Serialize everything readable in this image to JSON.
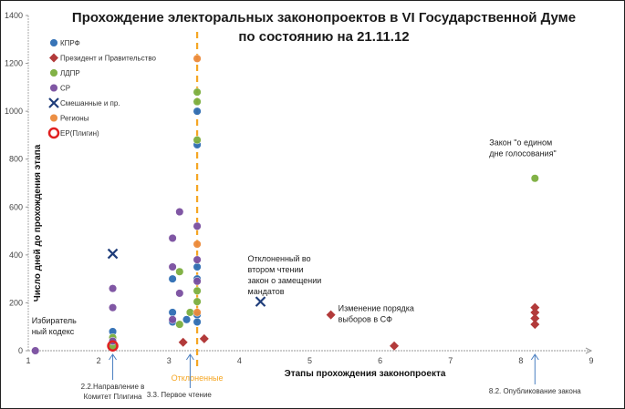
{
  "chart_data": {
    "type": "scatter",
    "title": "Прохождение электоральных законопроектов в VI Государственной Думе",
    "subtitle": "по состоянию на 21.11.12",
    "xlabel": "Этапы прохождения законопроекта",
    "ylabel": "Число дней до прохождения этапа",
    "xlim": [
      1,
      9
    ],
    "ylim": [
      0,
      1400
    ],
    "x_ticks": [
      "1",
      "2",
      "3",
      "4",
      "5",
      "6",
      "7",
      "8",
      "9"
    ],
    "y_ticks": [
      "0",
      "200",
      "400",
      "600",
      "800",
      "1000",
      "1200",
      "1400"
    ],
    "legend_position": "top-left",
    "series": [
      {
        "name": "КПРФ",
        "color": "#2e6db4",
        "marker": "circle",
        "points": [
          [
            2.2,
            80
          ],
          [
            3.05,
            300
          ],
          [
            3.05,
            160
          ],
          [
            3.05,
            120
          ],
          [
            3.25,
            130
          ],
          [
            3.4,
            1000
          ],
          [
            3.4,
            860
          ],
          [
            3.4,
            350
          ],
          [
            3.4,
            300
          ],
          [
            3.4,
            150
          ],
          [
            3.4,
            120
          ]
        ]
      },
      {
        "name": "Президент и Правительство",
        "color": "#b23a3a",
        "marker": "diamond",
        "points": [
          [
            3.2,
            35
          ],
          [
            3.5,
            50
          ],
          [
            5.3,
            150
          ],
          [
            6.2,
            20
          ],
          [
            8.2,
            180
          ],
          [
            8.2,
            160
          ],
          [
            8.2,
            135
          ],
          [
            8.2,
            110
          ]
        ]
      },
      {
        "name": "ЛДПР",
        "color": "#7cae3e",
        "marker": "circle",
        "points": [
          [
            2.2,
            55
          ],
          [
            2.2,
            20
          ],
          [
            3.15,
            330
          ],
          [
            3.15,
            110
          ],
          [
            3.3,
            160
          ],
          [
            3.4,
            1080
          ],
          [
            3.4,
            1040
          ],
          [
            3.4,
            880
          ],
          [
            3.4,
            250
          ],
          [
            3.4,
            205
          ],
          [
            8.2,
            720
          ]
        ]
      },
      {
        "name": "СР",
        "color": "#7a4fa0",
        "marker": "circle",
        "points": [
          [
            1.1,
            0
          ],
          [
            2.2,
            260
          ],
          [
            2.2,
            180
          ],
          [
            2.2,
            40
          ],
          [
            3.05,
            470
          ],
          [
            3.05,
            350
          ],
          [
            3.05,
            130
          ],
          [
            3.15,
            580
          ],
          [
            3.15,
            240
          ],
          [
            3.4,
            520
          ],
          [
            3.4,
            380
          ],
          [
            3.4,
            290
          ]
        ]
      },
      {
        "name": "Смешанные и пр.",
        "color": "#1f3d7a",
        "marker": "x",
        "points": [
          [
            2.2,
            405
          ],
          [
            4.3,
            205
          ]
        ]
      },
      {
        "name": "Регионы",
        "color": "#ec8a3a",
        "marker": "circle",
        "points": [
          [
            3.4,
            1220
          ],
          [
            3.4,
            445
          ],
          [
            3.4,
            160
          ]
        ]
      },
      {
        "name": "ЕР(Плигин)",
        "color": "#e02020",
        "marker": "ring",
        "points": [
          [
            2.2,
            20
          ]
        ]
      }
    ],
    "annotations": [
      {
        "text": [
          "Избиратель",
          "ный кодекс"
        ],
        "x": 1.1,
        "y": 0
      },
      {
        "text": [
          "Отклоненный во",
          "втором чтении",
          "закон о замещении",
          "мандатов"
        ],
        "x": 4.3,
        "y": 205
      },
      {
        "text": [
          "Изменение порядка",
          "выборов в СФ"
        ],
        "x": 5.3,
        "y": 150
      },
      {
        "text": [
          "Закон \"о едином",
          "дне голосования\""
        ],
        "x": 8.2,
        "y": 720
      }
    ],
    "reference_line": {
      "x": 3.4,
      "label": "Отклоненные",
      "color": "#f5a623"
    },
    "stage_markers": [
      {
        "x": 2.2,
        "label": [
          "2.2.Направление в",
          "Комитет Плигина"
        ]
      },
      {
        "x": 3.3,
        "label": [
          "3.3. Первое чтение"
        ]
      },
      {
        "x": 8.2,
        "label": [
          "8.2. Опубликование закона"
        ]
      }
    ]
  }
}
